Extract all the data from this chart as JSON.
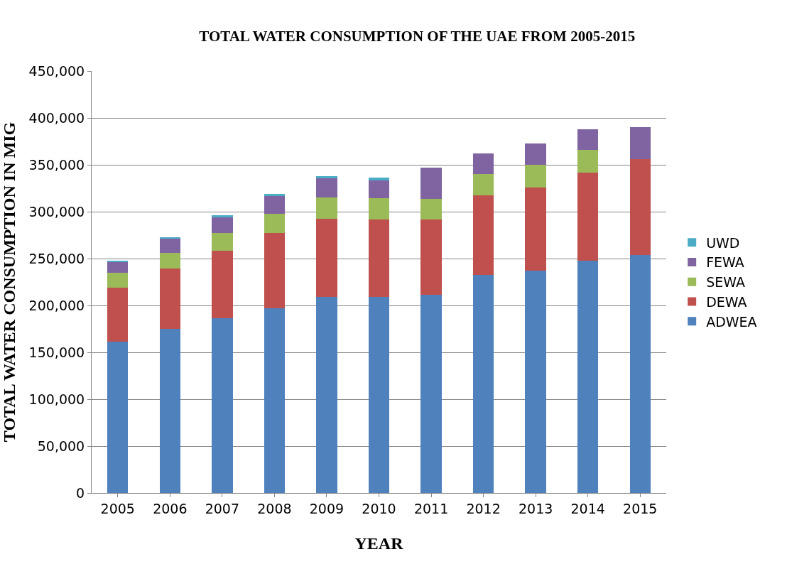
{
  "chart_data": {
    "type": "bar",
    "title": "TOTAL WATER CONSUMPTION OF THE UAE FROM 2005-2015",
    "xlabel": "YEAR",
    "ylabel": "TOTAL WATER CONSUMPTION IN MIG",
    "categories": [
      "2005",
      "2006",
      "2007",
      "2008",
      "2009",
      "2010",
      "2011",
      "2012",
      "2013",
      "2014",
      "2015"
    ],
    "stacked": true,
    "series": [
      {
        "name": "ADWEA",
        "color": "#4f81bd",
        "values": [
          161000,
          175000,
          186000,
          197000,
          209000,
          209000,
          211000,
          232500,
          237500,
          247500,
          254000
        ]
      },
      {
        "name": "DEWA",
        "color": "#c0504d",
        "values": [
          58000,
          64500,
          72000,
          80000,
          83500,
          83000,
          81000,
          85000,
          88000,
          94500,
          102000
        ]
      },
      {
        "name": "SEWA",
        "color": "#9bbb59",
        "values": [
          15500,
          16500,
          19000,
          21000,
          22500,
          22500,
          22000,
          23000,
          24500,
          24000,
          null
        ]
      },
      {
        "name": "FEWA",
        "color": "#8064a2",
        "values": [
          12000,
          15000,
          17000,
          18500,
          20500,
          19000,
          33000,
          21500,
          23000,
          22000,
          34500
        ]
      },
      {
        "name": "UWD",
        "color": "#4bacc6",
        "values": [
          1500,
          2000,
          2500,
          2500,
          2500,
          2500,
          null,
          null,
          null,
          null,
          null
        ]
      }
    ],
    "ylim": [
      0,
      450000
    ],
    "yticks": [
      {
        "value": 0,
        "label": "0"
      },
      {
        "value": 50000,
        "label": "50,000"
      },
      {
        "value": 100000,
        "label": "100,000"
      },
      {
        "value": 150000,
        "label": "150,000"
      },
      {
        "value": 200000,
        "label": "200,000"
      },
      {
        "value": 250000,
        "label": "250,000"
      },
      {
        "value": 300000,
        "label": "300,000"
      },
      {
        "value": 350000,
        "label": "350,000"
      },
      {
        "value": 400000,
        "label": "400,000"
      },
      {
        "value": 450000,
        "label": "450,000"
      }
    ],
    "grid": "y",
    "legend": "right"
  }
}
